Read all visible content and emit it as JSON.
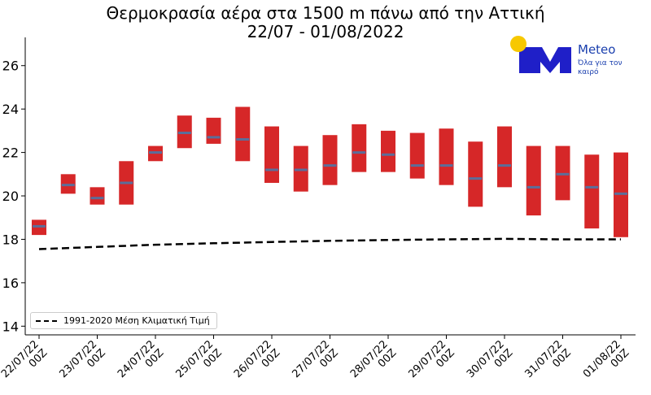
{
  "chart_data": {
    "type": "bar",
    "title": "Θερμοκρασία αέρα στα 1500 m πάνω από την Αττική",
    "subtitle": "22/07 - 01/08/2022",
    "xlabel": "",
    "ylabel": "",
    "ylim": [
      13.6,
      27.3
    ],
    "yticks": [
      14,
      16,
      18,
      20,
      22,
      24,
      26
    ],
    "grid": false,
    "legend_position": "bottom-left",
    "x_ticks": [
      {
        "index": 0,
        "line1": "22/07/22",
        "line2": "00Z"
      },
      {
        "index": 2,
        "line1": "23/07/22",
        "line2": "00Z"
      },
      {
        "index": 4,
        "line1": "24/07/22",
        "line2": "00Z"
      },
      {
        "index": 6,
        "line1": "25/07/22",
        "line2": "00Z"
      },
      {
        "index": 8,
        "line1": "26/07/22",
        "line2": "00Z"
      },
      {
        "index": 10,
        "line1": "27/07/22",
        "line2": "00Z"
      },
      {
        "index": 12,
        "line1": "28/07/22",
        "line2": "00Z"
      },
      {
        "index": 14,
        "line1": "29/07/22",
        "line2": "00Z"
      },
      {
        "index": 16,
        "line1": "30/07/22",
        "line2": "00Z"
      },
      {
        "index": 18,
        "line1": "31/07/22",
        "line2": "00Z"
      },
      {
        "index": 20,
        "line1": "01/08/22",
        "line2": "00Z"
      }
    ],
    "ranges": [
      {
        "low": 18.2,
        "high": 18.9,
        "mean": 18.6
      },
      {
        "low": 20.1,
        "high": 21.0,
        "mean": 20.5
      },
      {
        "low": 19.6,
        "high": 20.4,
        "mean": 19.9
      },
      {
        "low": 19.6,
        "high": 21.6,
        "mean": 20.6
      },
      {
        "low": 21.6,
        "high": 22.3,
        "mean": 22.0
      },
      {
        "low": 22.2,
        "high": 23.7,
        "mean": 22.9
      },
      {
        "low": 22.4,
        "high": 23.6,
        "mean": 22.7
      },
      {
        "low": 21.6,
        "high": 24.1,
        "mean": 22.6
      },
      {
        "low": 20.6,
        "high": 23.2,
        "mean": 21.2
      },
      {
        "low": 20.2,
        "high": 22.3,
        "mean": 21.2
      },
      {
        "low": 20.5,
        "high": 22.8,
        "mean": 21.4
      },
      {
        "low": 21.1,
        "high": 23.3,
        "mean": 22.0
      },
      {
        "low": 21.1,
        "high": 23.0,
        "mean": 21.9
      },
      {
        "low": 20.8,
        "high": 22.9,
        "mean": 21.4
      },
      {
        "low": 20.5,
        "high": 23.1,
        "mean": 21.4
      },
      {
        "low": 19.5,
        "high": 22.5,
        "mean": 20.8
      },
      {
        "low": 20.4,
        "high": 23.2,
        "mean": 21.4
      },
      {
        "low": 19.1,
        "high": 22.3,
        "mean": 20.4
      },
      {
        "low": 19.8,
        "high": 22.3,
        "mean": 21.0
      },
      {
        "low": 18.5,
        "high": 21.9,
        "mean": 20.4
      },
      {
        "low": 18.1,
        "high": 22.0,
        "mean": 20.1
      }
    ],
    "climatology": {
      "name": "1991-2020 Μέση Κλιματική Τιμή",
      "values": [
        17.55,
        17.65,
        17.75,
        17.82,
        17.88,
        17.93,
        17.97,
        18.0,
        18.02,
        18.0,
        18.0
      ]
    },
    "colors": {
      "bar": "#d62728",
      "mean": "#5b6e9a",
      "climatology": "#000000"
    }
  },
  "logo": {
    "brand": "Meteo",
    "tagline": "Όλα για τον καιρό",
    "colors": {
      "sun": "#f7c800",
      "mark": "#1f1fc8"
    }
  }
}
